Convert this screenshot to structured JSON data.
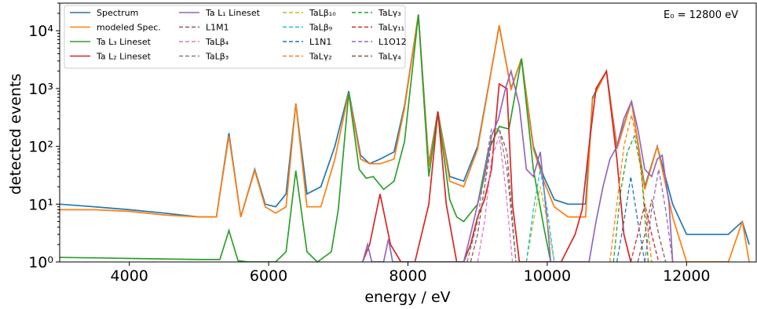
{
  "chart_data": {
    "type": "line",
    "title": "",
    "xlabel": "energy / eV",
    "ylabel": "detected events",
    "xlim": [
      3000,
      13000
    ],
    "ylim": [
      1,
      30000
    ],
    "yscale": "log",
    "grid": false,
    "legend_position": "top-left",
    "annotation": "E₀ = 12800 eV",
    "x_ticks": [
      4000,
      6000,
      8000,
      10000,
      12000
    ],
    "x_tick_labels": [
      "4000",
      "6000",
      "8000",
      "10000",
      "12000"
    ],
    "y_ticks": [
      1,
      10,
      100,
      1000,
      10000
    ],
    "y_tick_labels": [
      "10⁰",
      "10¹",
      "10²",
      "10³",
      "10⁴"
    ],
    "series": [
      {
        "name": "Spectrum",
        "color": "#1f77b4",
        "style": "solid",
        "x": [
          3000,
          3500,
          4000,
          4500,
          5000,
          5250,
          5430,
          5600,
          5800,
          5950,
          6100,
          6250,
          6390,
          6550,
          6750,
          6950,
          7150,
          7320,
          7450,
          7600,
          7800,
          7950,
          8150,
          8300,
          8430,
          8600,
          8800,
          9000,
          9150,
          9310,
          9480,
          9630,
          9800,
          9950,
          10100,
          10300,
          10550,
          10650,
          10850,
          11000,
          11210,
          11400,
          11580,
          11800,
          12000,
          12300,
          12600,
          12800,
          12900
        ],
        "y": [
          10,
          9,
          8,
          7,
          6,
          6,
          170,
          6,
          40,
          10,
          9,
          15,
          550,
          15,
          20,
          100,
          900,
          70,
          50,
          60,
          80,
          500,
          19000,
          50,
          400,
          30,
          25,
          100,
          1000,
          12000,
          1000,
          3300,
          100,
          30,
          12,
          10,
          10,
          700,
          2000,
          100,
          600,
          20,
          100,
          10,
          3,
          3,
          3,
          5,
          2
        ]
      },
      {
        "name": "modeled Spec.",
        "color": "#ff7f0e",
        "style": "solid",
        "x": [
          3000,
          3500,
          4000,
          4500,
          5000,
          5250,
          5430,
          5600,
          5800,
          5950,
          6100,
          6250,
          6390,
          6550,
          6750,
          6950,
          7150,
          7320,
          7450,
          7600,
          7800,
          7950,
          8150,
          8300,
          8430,
          8600,
          8800,
          9000,
          9150,
          9310,
          9480,
          9630,
          9800,
          9950,
          10100,
          10300,
          10550,
          10650,
          10850,
          11000,
          11210,
          11400,
          11580,
          11800,
          12000,
          12300,
          12600,
          12800,
          12900
        ],
        "y": [
          8,
          8,
          7.5,
          6.5,
          6,
          6,
          150,
          6,
          38,
          9,
          7,
          9,
          550,
          9,
          9,
          60,
          850,
          60,
          50,
          50,
          60,
          450,
          19000,
          45,
          400,
          25,
          20,
          90,
          950,
          12500,
          950,
          3300,
          90,
          25,
          9,
          6,
          6,
          650,
          2000,
          90,
          600,
          18,
          100,
          6,
          1,
          1,
          1,
          5,
          1
        ]
      },
      {
        "name": "Ta L₃ Lineset",
        "color": "#2ca02c",
        "style": "solid",
        "x": [
          3000,
          4000,
          5000,
          5300,
          5430,
          5560,
          5700,
          5900,
          6100,
          6250,
          6390,
          6550,
          6700,
          6900,
          7000,
          7150,
          7300,
          7400,
          7500,
          7650,
          7800,
          7950,
          8150,
          8300,
          8430,
          8600,
          8700,
          8800,
          9000,
          9150,
          9310,
          9450,
          9630,
          9800,
          9950,
          10050
        ],
        "y": [
          1.2,
          1.15,
          1.1,
          1.1,
          3.5,
          1.05,
          1,
          1,
          1,
          1.5,
          38,
          1.5,
          1,
          1.5,
          8,
          850,
          40,
          28,
          30,
          18,
          25,
          120,
          19000,
          30,
          400,
          12,
          6,
          5,
          10,
          80,
          220,
          200,
          3300,
          40,
          4,
          1
        ],
        "connectgaps": false
      },
      {
        "name": "Ta L₂ Lineset",
        "color": "#d62728",
        "style": "solid",
        "x": [
          7350,
          7450,
          7600,
          7750,
          7900,
          8100,
          8300,
          8430,
          8550,
          8700,
          8800,
          8900,
          9000,
          9100,
          9200,
          9310,
          9420,
          9500,
          9600,
          9700,
          9800,
          10200,
          10400,
          10500,
          10600,
          10700,
          10850,
          11000,
          11100,
          11200
        ],
        "y": [
          1,
          2,
          15,
          2,
          1,
          1,
          10,
          400,
          10,
          1,
          1,
          2,
          6,
          12,
          40,
          1200,
          1000,
          10,
          1,
          1,
          1,
          1,
          3,
          8,
          100,
          1000,
          2000,
          60,
          3,
          1
        ]
      },
      {
        "name": "Ta L₁ Lineset",
        "color": "#9467bd",
        "style": "solid",
        "x": [
          7350,
          7420,
          7480,
          7550,
          7650,
          7720,
          7780,
          8800,
          8900,
          9000,
          9100,
          9200,
          9300,
          9400,
          9480,
          9600,
          9700,
          9800,
          9900,
          10000,
          10050,
          10600,
          10700,
          10800,
          10900,
          11000,
          11100,
          11210,
          11300,
          11400,
          11500,
          11580,
          11650,
          11750,
          11800
        ],
        "y": [
          1,
          2,
          1,
          1,
          1,
          2.5,
          1,
          1,
          3,
          10,
          30,
          150,
          300,
          1000,
          2000,
          500,
          40,
          30,
          80,
          5,
          1,
          1,
          5,
          20,
          60,
          100,
          300,
          600,
          200,
          40,
          30,
          60,
          70,
          10,
          1
        ],
        "connectgaps": false
      },
      {
        "name": "L1M1",
        "color": "#8c564b",
        "style": "dashed",
        "x": [
          8900,
          9000,
          9100,
          9200,
          9310,
          9420,
          9550
        ],
        "y": [
          1,
          3,
          20,
          120,
          200,
          80,
          1
        ]
      },
      {
        "name": "TaLβ₄",
        "color": "#e377c2",
        "style": "dashed",
        "x": [
          9000,
          9100,
          9200,
          9310,
          9400,
          9500
        ],
        "y": [
          1,
          5,
          60,
          150,
          20,
          1
        ]
      },
      {
        "name": "TaLβ₃",
        "color": "#7f7f7f",
        "style": "dashed",
        "x": [
          8850,
          9000,
          9100,
          9200,
          9310,
          9420,
          9550
        ],
        "y": [
          1,
          5,
          40,
          200,
          200,
          40,
          1
        ]
      },
      {
        "name": "TaLβ₁₀",
        "color": "#bcbd22",
        "style": "dashed",
        "x": [
          9700,
          9800,
          9900,
          10000,
          10100
        ],
        "y": [
          1,
          5,
          20,
          5,
          1
        ]
      },
      {
        "name": "TaLβ₉",
        "color": "#17becf",
        "style": "dashed",
        "x": [
          9700,
          9800,
          9900,
          10000,
          10100
        ],
        "y": [
          1,
          8,
          40,
          8,
          1
        ]
      },
      {
        "name": "L1N1",
        "color": "#1f77b4",
        "style": "dashed",
        "x": [
          11000,
          11100,
          11200,
          11300,
          11400
        ],
        "y": [
          1,
          5,
          30,
          5,
          1
        ]
      },
      {
        "name": "TaLγ₂",
        "color": "#ff7f0e",
        "style": "dashed",
        "x": [
          10900,
          11000,
          11100,
          11210,
          11300,
          11400,
          11500
        ],
        "y": [
          1,
          10,
          100,
          350,
          100,
          10,
          1
        ]
      },
      {
        "name": "TaLγ₃",
        "color": "#2ca02c",
        "style": "dashed",
        "x": [
          10950,
          11050,
          11150,
          11250,
          11350,
          11450
        ],
        "y": [
          1,
          15,
          80,
          150,
          40,
          1
        ]
      },
      {
        "name": "TaLγ₁₁",
        "color": "#d62728",
        "style": "dashed",
        "x": [
          11200,
          11300,
          11400,
          11500,
          11600
        ],
        "y": [
          1,
          3,
          10,
          3,
          1
        ]
      },
      {
        "name": "L1O12",
        "color": "#9467bd",
        "style": "dashed",
        "x": [
          11400,
          11500,
          11600,
          11700,
          11800
        ],
        "y": [
          1,
          8,
          40,
          8,
          1
        ]
      },
      {
        "name": "TaLγ₄",
        "color": "#8c564b",
        "style": "dashed",
        "x": [
          11300,
          11400,
          11500,
          11600,
          11700
        ],
        "y": [
          1,
          3,
          12,
          3,
          1
        ]
      }
    ]
  }
}
